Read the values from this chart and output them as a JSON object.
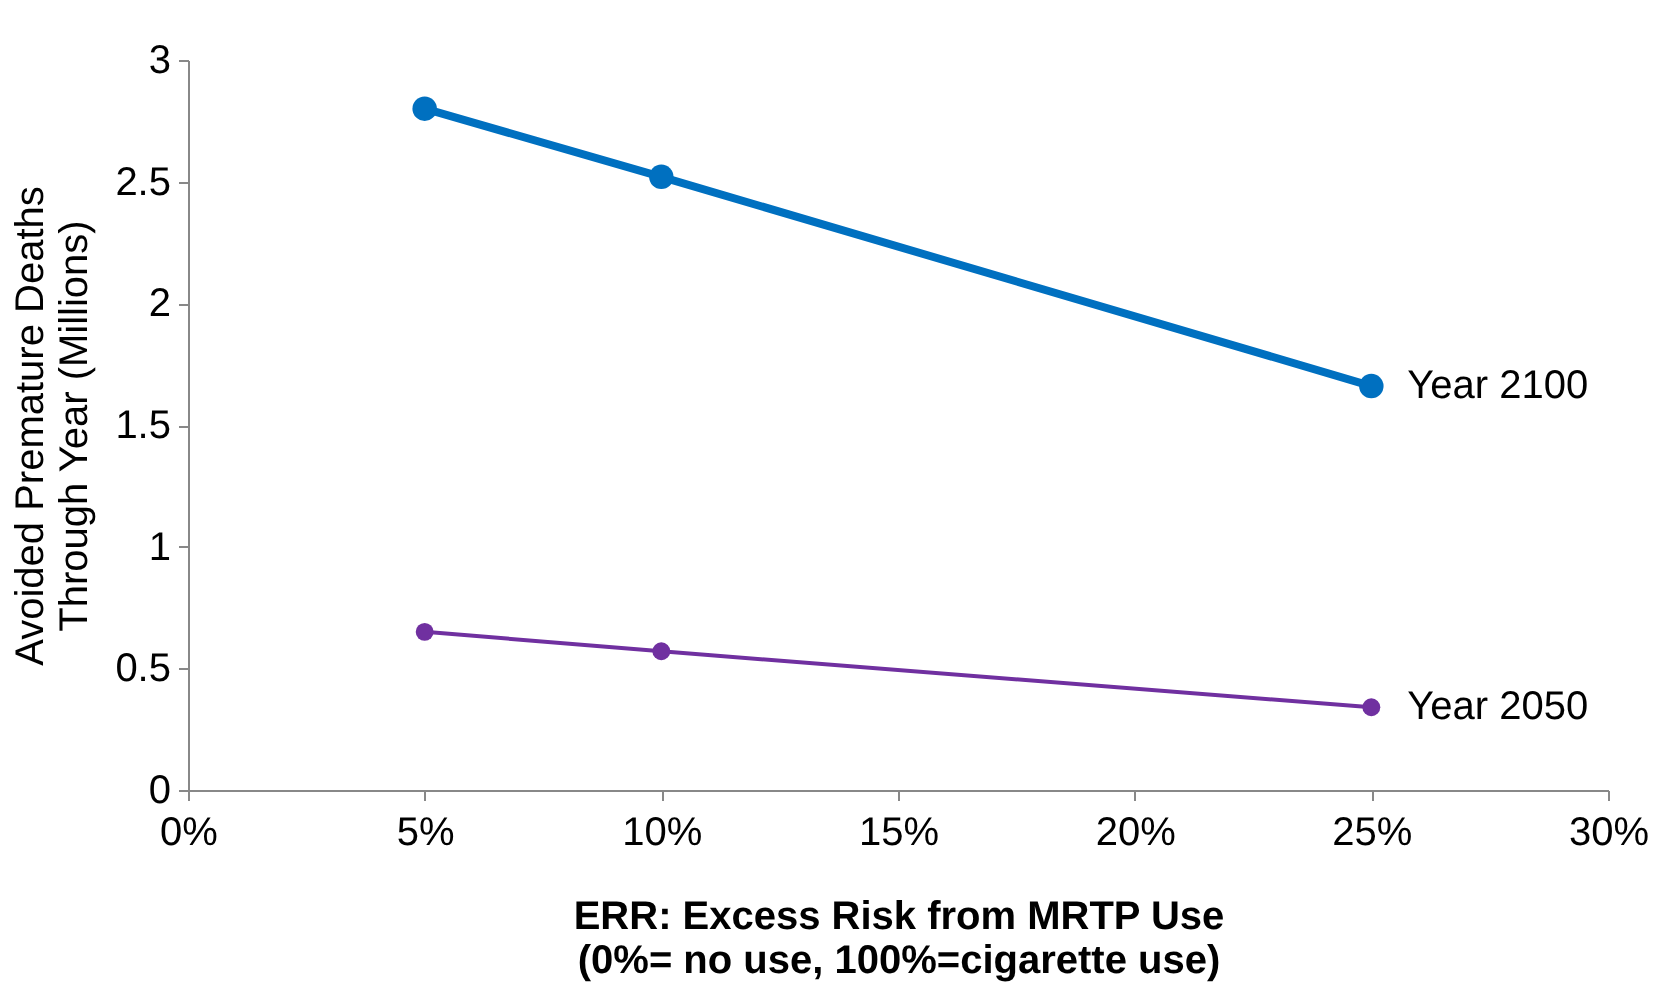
{
  "chart_data": {
    "type": "line",
    "xlabel": "ERR: Excess Risk from MRTP Use\n(0%= no use, 100%=cigarette use)",
    "ylabel": "Avoided Premature Deaths\nThrough Year (Millions)",
    "x": [
      5,
      10,
      25
    ],
    "series": [
      {
        "name": "Year 2100",
        "color": "#0070c0",
        "values": [
          2.8,
          2.52,
          1.66
        ]
      },
      {
        "name": "Year 2050",
        "color": "#7030a0",
        "values": [
          0.65,
          0.57,
          0.34
        ]
      }
    ],
    "xlim": [
      0,
      30
    ],
    "xticks": [
      {
        "value": 0,
        "label": "0%"
      },
      {
        "value": 5,
        "label": "5%"
      },
      {
        "value": 10,
        "label": "10%"
      },
      {
        "value": 15,
        "label": "15%"
      },
      {
        "value": 20,
        "label": "20%"
      },
      {
        "value": 25,
        "label": "25%"
      },
      {
        "value": 30,
        "label": "30%"
      }
    ],
    "ylim": [
      0,
      3
    ],
    "yticks": [
      0,
      0.5,
      1,
      1.5,
      2,
      2.5,
      3
    ],
    "grid": false,
    "legend": "right",
    "marker": "circle",
    "line_style": "solid"
  }
}
